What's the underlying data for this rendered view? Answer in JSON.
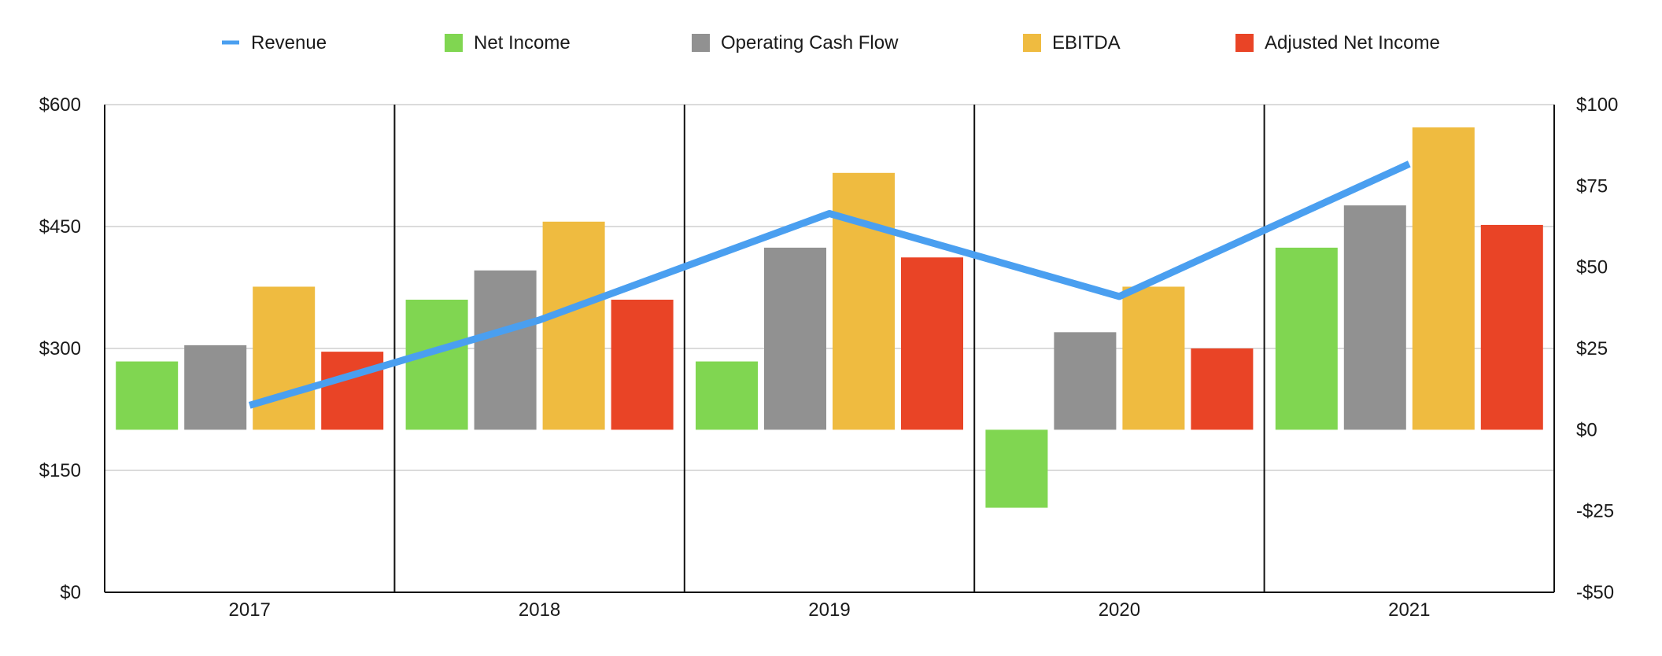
{
  "chart_data": {
    "type": "bar",
    "categories": [
      "2017",
      "2018",
      "2019",
      "2020",
      "2021"
    ],
    "series": [
      {
        "name": "Net Income",
        "kind": "bar",
        "axis": "right",
        "color": "#80d651",
        "values": [
          21,
          40,
          21,
          -24,
          56
        ]
      },
      {
        "name": "Operating Cash Flow",
        "kind": "bar",
        "axis": "right",
        "color": "#919191",
        "values": [
          26,
          49,
          56,
          30,
          69
        ]
      },
      {
        "name": "EBITDA",
        "kind": "bar",
        "axis": "right",
        "color": "#efbb40",
        "values": [
          44,
          64,
          79,
          44,
          93
        ]
      },
      {
        "name": "Adjusted Net Income",
        "kind": "bar",
        "axis": "right",
        "color": "#e94426",
        "values": [
          24,
          40,
          53,
          25,
          63
        ]
      },
      {
        "name": "Revenue",
        "kind": "line",
        "axis": "left",
        "color": "#4a9ff0",
        "values": [
          230,
          335,
          466,
          364,
          527
        ]
      }
    ],
    "legend_order": [
      "Revenue",
      "Net Income",
      "Operating Cash Flow",
      "EBITDA",
      "Adjusted Net Income"
    ],
    "legend_position": "top",
    "y_left": {
      "ylim": [
        0,
        600
      ],
      "ticks": [
        0,
        150,
        300,
        450,
        600
      ],
      "tick_labels": [
        "$0",
        "$150",
        "$300",
        "$450",
        "$600"
      ]
    },
    "y_right": {
      "ylim": [
        -50,
        100
      ],
      "ticks": [
        -50,
        -25,
        0,
        25,
        50,
        75,
        100
      ],
      "tick_labels": [
        "-$50",
        "-$25",
        "$0",
        "$25",
        "$50",
        "$75",
        "$100"
      ]
    },
    "grid": true,
    "category_separators": true,
    "title": "",
    "xlabel": "",
    "ylabel": ""
  }
}
